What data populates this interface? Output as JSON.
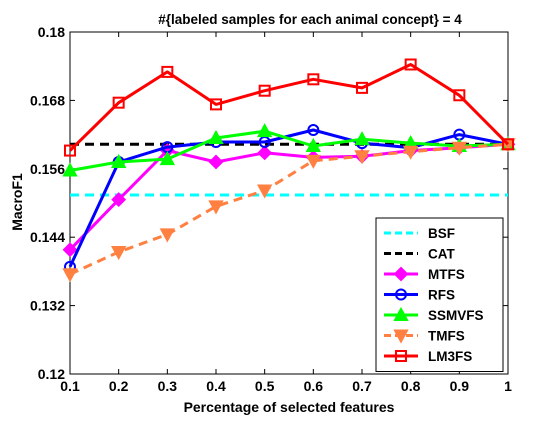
{
  "chart_data": {
    "type": "line",
    "title": "#{labeled samples for each animal concept} = 4",
    "xlabel": "Percentage of selected features",
    "ylabel": "MacroF1",
    "x": [
      0.1,
      0.2,
      0.3,
      0.4,
      0.5,
      0.6,
      0.7,
      0.8,
      0.9,
      1
    ],
    "x_tick_labels": [
      "0.1",
      "0.2",
      "0.3",
      "0.4",
      "0.5",
      "0.6",
      "0.7",
      "0.8",
      "0.9",
      "1"
    ],
    "y_ticks": [
      0.12,
      0.132,
      0.144,
      0.156,
      0.168,
      0.18
    ],
    "y_tick_labels": [
      "0.12",
      "0.132",
      "0.144",
      "0.156",
      "0.168",
      "0.18"
    ],
    "xlim": [
      0.1,
      1
    ],
    "ylim": [
      0.12,
      0.18
    ],
    "grid": false,
    "legend_position": "bottom-right",
    "series": [
      {
        "name": "BSF",
        "color": "#00ffff",
        "dash": "dashed",
        "marker": "none",
        "values": [
          0.1514,
          0.1514,
          0.1514,
          0.1514,
          0.1514,
          0.1514,
          0.1514,
          0.1514,
          0.1514,
          0.1514
        ]
      },
      {
        "name": "CAT",
        "color": "#000000",
        "dash": "dashed",
        "marker": "none",
        "values": [
          0.1603,
          0.1603,
          0.1603,
          0.1603,
          0.1603,
          0.1603,
          0.1603,
          0.1603,
          0.1603,
          0.1603
        ]
      },
      {
        "name": "MTFS",
        "color": "#ff00ff",
        "dash": "solid",
        "marker": "diamond",
        "values": [
          0.1418,
          0.1506,
          0.1592,
          0.1572,
          0.1588,
          0.158,
          0.1582,
          0.1592,
          0.1597,
          0.1603
        ]
      },
      {
        "name": "RFS",
        "color": "#0000ff",
        "dash": "solid",
        "marker": "circle",
        "values": [
          0.1388,
          0.1572,
          0.1598,
          0.1607,
          0.1607,
          0.1628,
          0.1605,
          0.1597,
          0.162,
          0.1603
        ]
      },
      {
        "name": "SSMVFS",
        "color": "#00ff00",
        "dash": "solid",
        "marker": "triangle-up",
        "values": [
          0.1557,
          0.1572,
          0.1577,
          0.1614,
          0.1626,
          0.16,
          0.1612,
          0.1605,
          0.16,
          0.1603
        ]
      },
      {
        "name": "TMFS",
        "color": "#ff8040",
        "dash": "dashed",
        "marker": "triangle-down",
        "values": [
          0.1375,
          0.1414,
          0.1445,
          0.1494,
          0.1522,
          0.1574,
          0.1582,
          0.159,
          0.1597,
          0.1603
        ]
      },
      {
        "name": "LM3FS",
        "color": "#ff0000",
        "dash": "solid",
        "marker": "square",
        "values": [
          0.1592,
          0.1676,
          0.173,
          0.1673,
          0.1697,
          0.1717,
          0.1702,
          0.1743,
          0.1689,
          0.1603
        ]
      }
    ]
  }
}
